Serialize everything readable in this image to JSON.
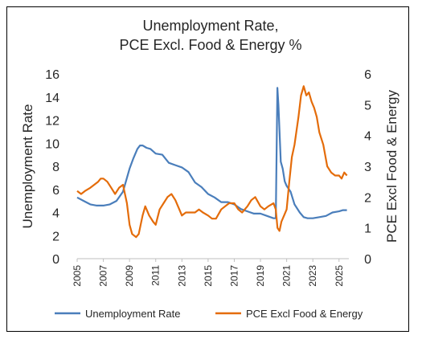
{
  "chart_data": {
    "type": "line",
    "title_lines": [
      "Unemployment Rate,",
      "PCE Excl. Food & Energy %"
    ],
    "y_left_label": "Unemployment Rate",
    "y_right_label": "PCE Excl Food & Energy",
    "y_left_ticks": [
      "0",
      "2",
      "4",
      "6",
      "8",
      "10",
      "12",
      "14",
      "16"
    ],
    "y_right_ticks": [
      "0",
      "1",
      "2",
      "3",
      "4",
      "5",
      "6"
    ],
    "x_ticks": [
      "2005",
      "2007",
      "2009",
      "2011",
      "2013",
      "2015",
      "2017",
      "2019",
      "2021",
      "2023",
      "2025"
    ],
    "ylim_left": [
      0,
      16
    ],
    "ylim_right": [
      0,
      6
    ],
    "xlim": [
      2005.0,
      2025.75
    ],
    "grid": false,
    "legend_position": "bottom",
    "series": [
      {
        "name": "Unemployment Rate",
        "axis": "left",
        "color": "#4a7ebb",
        "x": [
          2005.0,
          2005.5,
          2006.0,
          2006.5,
          2007.0,
          2007.5,
          2008.0,
          2008.5,
          2009.0,
          2009.3,
          2009.6,
          2009.8,
          2010.0,
          2010.3,
          2010.6,
          2011.0,
          2011.5,
          2012.0,
          2012.5,
          2013.0,
          2013.5,
          2014.0,
          2014.5,
          2015.0,
          2015.5,
          2016.0,
          2016.5,
          2017.0,
          2017.5,
          2018.0,
          2018.5,
          2019.0,
          2019.5,
          2020.0,
          2020.17,
          2020.29,
          2020.37,
          2020.45,
          2020.55,
          2020.7,
          2020.85,
          2021.0,
          2021.3,
          2021.6,
          2022.0,
          2022.3,
          2022.6,
          2023.0,
          2023.5,
          2024.0,
          2024.5,
          2025.0,
          2025.3,
          2025.6
        ],
        "values": [
          5.3,
          5.0,
          4.7,
          4.6,
          4.6,
          4.7,
          5.0,
          5.8,
          7.8,
          8.7,
          9.5,
          9.8,
          9.8,
          9.6,
          9.5,
          9.1,
          9.0,
          8.3,
          8.1,
          7.9,
          7.5,
          6.6,
          6.2,
          5.6,
          5.3,
          4.9,
          4.9,
          4.7,
          4.3,
          4.1,
          3.9,
          3.9,
          3.7,
          3.5,
          3.5,
          14.8,
          13.3,
          11.1,
          8.4,
          7.8,
          6.7,
          6.3,
          5.8,
          4.7,
          4.0,
          3.6,
          3.5,
          3.5,
          3.6,
          3.7,
          4.0,
          4.1,
          4.2,
          4.2
        ]
      },
      {
        "name": "PCE Excl Food & Energy",
        "axis": "right",
        "color": "#e46c0a",
        "x": [
          2005.0,
          2005.3,
          2005.6,
          2006.0,
          2006.3,
          2006.6,
          2006.8,
          2007.0,
          2007.3,
          2007.6,
          2007.9,
          2008.2,
          2008.5,
          2008.8,
          2009.0,
          2009.2,
          2009.5,
          2009.7,
          2009.85,
          2010.0,
          2010.2,
          2010.5,
          2010.8,
          2011.0,
          2011.3,
          2011.6,
          2011.9,
          2012.2,
          2012.5,
          2012.8,
          2013.0,
          2013.3,
          2013.6,
          2014.0,
          2014.3,
          2014.6,
          2015.0,
          2015.3,
          2015.6,
          2016.0,
          2016.3,
          2016.6,
          2017.0,
          2017.3,
          2017.6,
          2018.0,
          2018.3,
          2018.6,
          2019.0,
          2019.3,
          2019.6,
          2020.0,
          2020.17,
          2020.3,
          2020.45,
          2020.6,
          2020.8,
          2021.0,
          2021.2,
          2021.4,
          2021.6,
          2021.9,
          2022.1,
          2022.3,
          2022.5,
          2022.7,
          2022.9,
          2023.1,
          2023.3,
          2023.5,
          2023.8,
          2024.1,
          2024.4,
          2024.7,
          2025.0,
          2025.2,
          2025.4,
          2025.6
        ],
        "values": [
          2.2,
          2.1,
          2.2,
          2.3,
          2.4,
          2.5,
          2.6,
          2.6,
          2.5,
          2.3,
          2.1,
          2.3,
          2.4,
          1.8,
          1.1,
          0.8,
          0.7,
          0.8,
          1.1,
          1.4,
          1.7,
          1.4,
          1.2,
          1.1,
          1.6,
          1.8,
          2.0,
          2.1,
          1.9,
          1.6,
          1.4,
          1.5,
          1.5,
          1.5,
          1.6,
          1.5,
          1.4,
          1.3,
          1.3,
          1.6,
          1.7,
          1.8,
          1.8,
          1.6,
          1.5,
          1.7,
          1.9,
          2.0,
          1.7,
          1.6,
          1.7,
          1.8,
          1.6,
          1.0,
          0.9,
          1.2,
          1.4,
          1.6,
          2.5,
          3.3,
          3.7,
          4.6,
          5.3,
          5.6,
          5.3,
          5.4,
          5.1,
          4.9,
          4.6,
          4.1,
          3.7,
          3.0,
          2.8,
          2.7,
          2.7,
          2.6,
          2.8,
          2.7
        ]
      }
    ]
  }
}
